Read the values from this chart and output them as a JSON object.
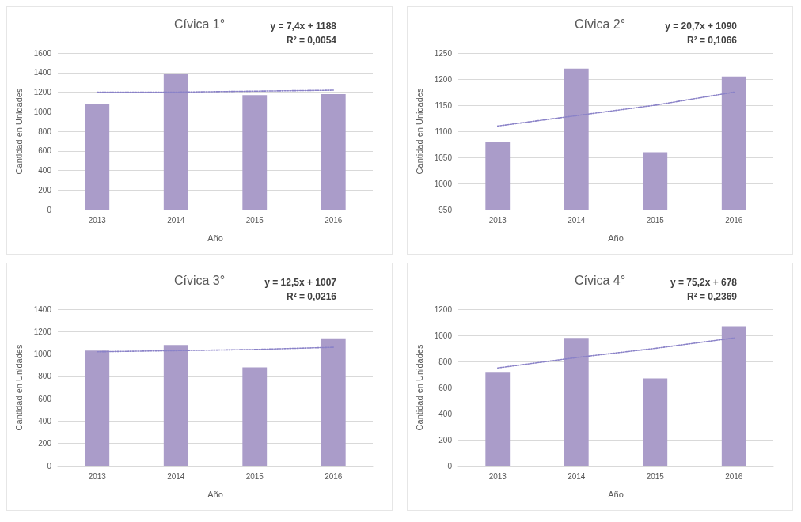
{
  "chart_data": [
    {
      "type": "bar",
      "title": "Cívica 1°",
      "xlabel": "Año",
      "ylabel": "Cantidad en Unidades",
      "categories": [
        "2013",
        "2014",
        "2015",
        "2016"
      ],
      "series": [
        {
          "color": "#aa9cc9",
          "values": [
            1080,
            1390,
            1170,
            1180
          ]
        },
        {
          "type": "line",
          "color": "#8a82c8",
          "line_style": "dotted",
          "marker": "none",
          "values": [
            1200,
            1200,
            1210,
            1220
          ]
        }
      ],
      "ylim": [
        0,
        1600
      ],
      "yticks": [
        0,
        200,
        400,
        600,
        800,
        1000,
        1200,
        1400,
        1600
      ],
      "grid": "y",
      "annotations": [
        "y = 7,4x + 1188",
        "R² = 0,0054"
      ]
    },
    {
      "type": "bar",
      "title": "Cívica 2°",
      "xlabel": "Año",
      "ylabel": "Cantidad en Unidades",
      "categories": [
        "2013",
        "2014",
        "2015",
        "2016"
      ],
      "series": [
        {
          "color": "#aa9cc9",
          "values": [
            1080,
            1220,
            1060,
            1205
          ]
        },
        {
          "type": "line",
          "color": "#8a82c8",
          "line_style": "dotted",
          "marker": "none",
          "values": [
            1110,
            1130,
            1150,
            1175
          ]
        }
      ],
      "ylim": [
        950,
        1250
      ],
      "yticks": [
        950,
        1000,
        1050,
        1100,
        1150,
        1200,
        1250
      ],
      "grid": "y",
      "annotations": [
        "y = 20,7x + 1090",
        "R² = 0,1066"
      ]
    },
    {
      "type": "bar",
      "title": "Cívica 3°",
      "xlabel": "Año",
      "ylabel": "Cantidad en Unidades",
      "categories": [
        "2013",
        "2014",
        "2015",
        "2016"
      ],
      "series": [
        {
          "color": "#aa9cc9",
          "values": [
            1030,
            1080,
            880,
            1140
          ]
        },
        {
          "type": "line",
          "color": "#8a82c8",
          "line_style": "dotted",
          "marker": "none",
          "values": [
            1020,
            1030,
            1040,
            1060
          ]
        }
      ],
      "ylim": [
        0,
        1400
      ],
      "yticks": [
        0,
        200,
        400,
        600,
        800,
        1000,
        1200,
        1400
      ],
      "grid": "y",
      "annotations": [
        "y = 12,5x + 1007",
        "R² = 0,0216"
      ]
    },
    {
      "type": "bar",
      "title": "Cívica 4°",
      "xlabel": "Año",
      "ylabel": "Cantidad en Unidades",
      "categories": [
        "2013",
        "2014",
        "2015",
        "2016"
      ],
      "series": [
        {
          "color": "#aa9cc9",
          "values": [
            720,
            980,
            670,
            1070
          ]
        },
        {
          "type": "line",
          "color": "#8a82c8",
          "line_style": "dotted",
          "marker": "none",
          "values": [
            750,
            830,
            900,
            980
          ]
        }
      ],
      "ylim": [
        0,
        1200
      ],
      "yticks": [
        0,
        200,
        400,
        600,
        800,
        1000,
        1200
      ],
      "grid": "y",
      "annotations": [
        "y = 75,2x + 678",
        "R² = 0,2369"
      ]
    }
  ]
}
